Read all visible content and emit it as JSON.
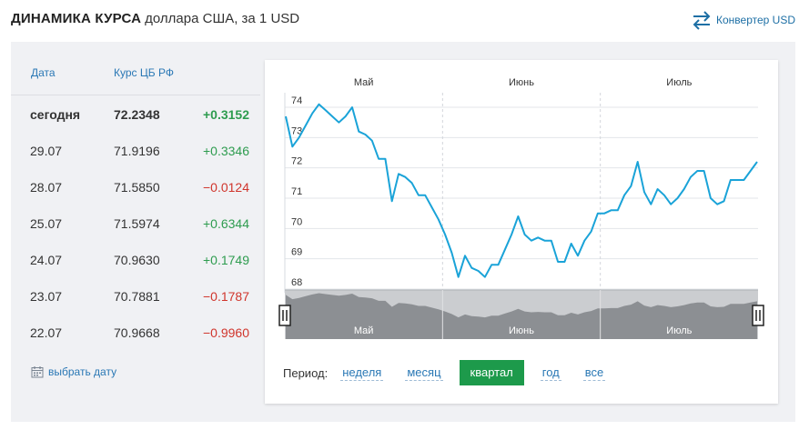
{
  "header": {
    "title_main": "ДИНАМИКА КУРСА",
    "title_sub": "доллара США, за 1 USD",
    "converter_label": "Конвертер USD",
    "converter_icon": "swap-arrows-icon"
  },
  "table": {
    "col_date": "Дата",
    "col_rate": "Курс ЦБ РФ",
    "rows": [
      {
        "date": "сегодня",
        "rate": "72.2348",
        "change": "+0.3152"
      },
      {
        "date": "29.07",
        "rate": "71.9196",
        "change": "+0.3346"
      },
      {
        "date": "28.07",
        "rate": "71.5850",
        "change": "−0.0124"
      },
      {
        "date": "25.07",
        "rate": "71.5974",
        "change": "+0.6344"
      },
      {
        "date": "24.07",
        "rate": "70.9630",
        "change": "+0.1749"
      },
      {
        "date": "23.07",
        "rate": "70.7881",
        "change": "−0.1787"
      },
      {
        "date": "22.07",
        "rate": "70.9668",
        "change": "−0.9960"
      }
    ]
  },
  "pick_date": {
    "label": "выбрать дату",
    "icon": "calendar-icon"
  },
  "period": {
    "label": "Период:",
    "options": [
      "неделя",
      "месяц",
      "квартал",
      "год",
      "все"
    ],
    "active": "квартал"
  },
  "colors": {
    "line": "#1aa3d8",
    "positive": "#2e9c4f",
    "negative": "#d0352c",
    "active_period": "#1d9a4b",
    "link": "#2a78b5"
  },
  "chart_data": {
    "type": "line",
    "months": [
      "Май",
      "Июнь",
      "Июль"
    ],
    "ylim": [
      68,
      74
    ],
    "yticks": [
      68,
      69,
      70,
      71,
      72,
      73,
      74
    ],
    "grid": true,
    "values": [
      73.7,
      72.7,
      73.0,
      73.4,
      73.8,
      74.1,
      73.9,
      73.7,
      73.5,
      73.7,
      74.0,
      73.2,
      73.1,
      72.9,
      72.3,
      72.3,
      70.9,
      71.8,
      71.7,
      71.5,
      71.1,
      71.1,
      70.7,
      70.3,
      69.8,
      69.2,
      68.4,
      69.1,
      68.7,
      68.6,
      68.4,
      68.8,
      68.8,
      69.3,
      69.8,
      70.4,
      69.8,
      69.6,
      69.7,
      69.6,
      69.6,
      68.9,
      68.9,
      69.5,
      69.1,
      69.6,
      69.9,
      70.5,
      70.5,
      70.6,
      70.6,
      71.1,
      71.4,
      72.2,
      71.2,
      70.8,
      71.3,
      71.1,
      70.8,
      71.0,
      71.3,
      71.7,
      71.9,
      71.9,
      71.0,
      70.8,
      70.9,
      71.6,
      71.6,
      71.6,
      71.9,
      72.2
    ],
    "navigator_months": [
      "Май",
      "Июнь",
      "Июль"
    ]
  }
}
